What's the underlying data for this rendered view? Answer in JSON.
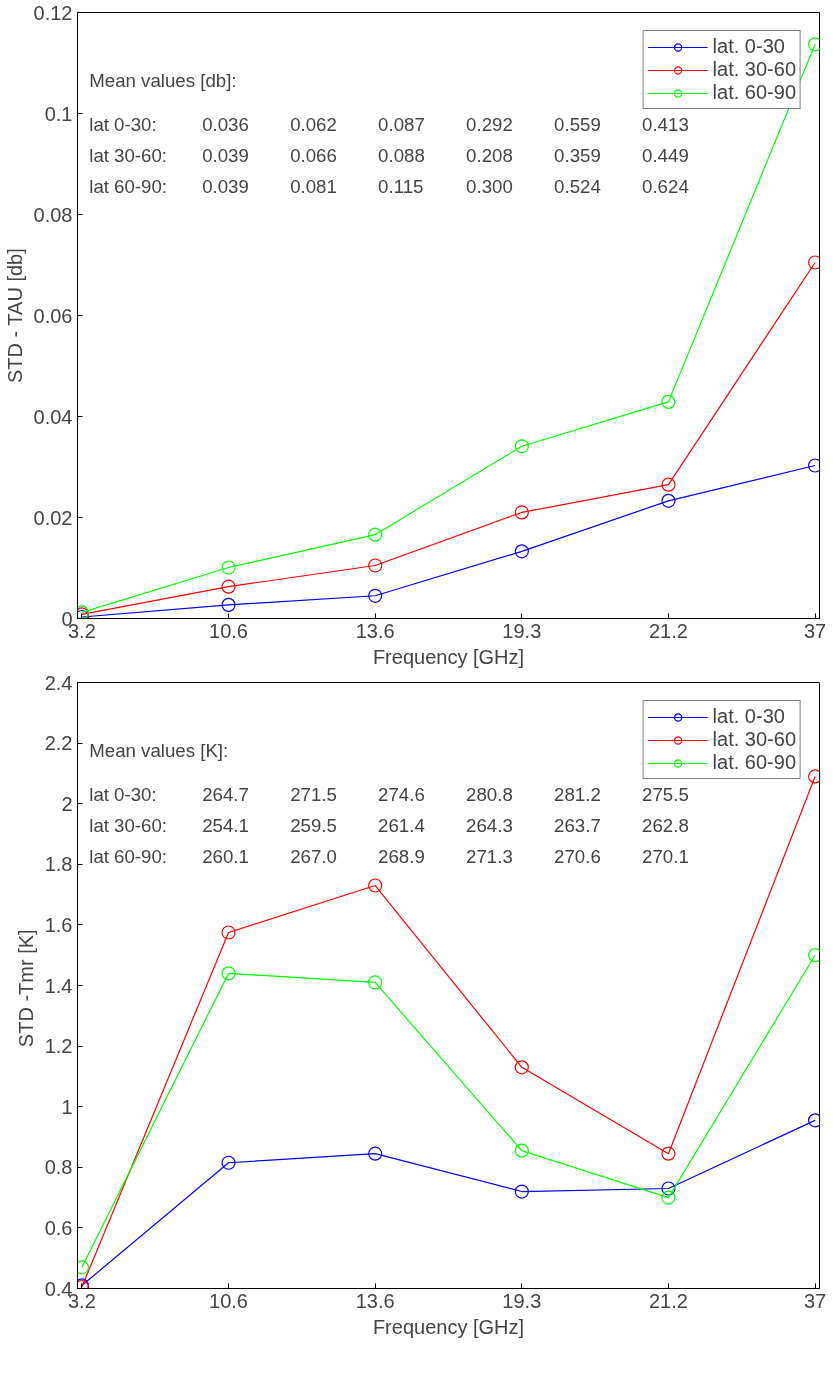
{
  "chart_data": [
    {
      "type": "line",
      "xlabel": "Frequency [GHz]",
      "ylabel": "STD - TAU [db]",
      "categories": [
        "3.2",
        "10.6",
        "13.6",
        "19.3",
        "21.2",
        "37"
      ],
      "ylim": [
        0,
        0.12
      ],
      "yticks": [
        0,
        0.02,
        0.04,
        0.06,
        0.08,
        0.1,
        0.12
      ],
      "grid": false,
      "legend": "top right",
      "marker": "circle",
      "line_style": "solid",
      "series": [
        {
          "name": "lat. 0-30",
          "color": "#0000ff",
          "values": [
            0.0003,
            0.0027,
            0.0045,
            0.0133,
            0.0233,
            0.0303
          ]
        },
        {
          "name": "lat. 30-60",
          "color": "#ff0000",
          "values": [
            0.0008,
            0.0063,
            0.0105,
            0.021,
            0.0265,
            0.0705
          ]
        },
        {
          "name": "lat. 60-90",
          "color": "#00ff00",
          "values": [
            0.0012,
            0.0101,
            0.0166,
            0.0341,
            0.0429,
            0.1137
          ]
        }
      ],
      "annotations": [
        "Mean values [db]:",
        "lat 0-30:    0.036     0.062     0.087     0.292     0.559     0.413",
        "lat 30-60:  0.039     0.066     0.088     0.208     0.359     0.449",
        "lat 60-90:  0.039     0.081     0.115     0.300     0.524     0.624"
      ]
    },
    {
      "type": "line",
      "xlabel": "Frequency [GHz]",
      "ylabel": "STD -Tmr  [K]",
      "categories": [
        "3.2",
        "10.6",
        "13.6",
        "19.3",
        "21.2",
        "37"
      ],
      "ylim": [
        0.4,
        2.4
      ],
      "yticks": [
        0.4,
        0.6,
        0.8,
        1,
        1.2,
        1.4,
        1.6,
        1.8,
        2,
        2.2,
        2.4
      ],
      "grid": false,
      "legend": "top right",
      "marker": "circle",
      "line_style": "solid",
      "series": [
        {
          "name": "lat. 0-30",
          "color": "#0000ff",
          "values": [
            0.41,
            0.815,
            0.845,
            0.72,
            0.73,
            0.955
          ]
        },
        {
          "name": "lat. 30-60",
          "color": "#ff0000",
          "values": [
            0.405,
            1.575,
            1.73,
            1.13,
            0.845,
            2.09
          ]
        },
        {
          "name": "lat. 60-90",
          "color": "#00ff00",
          "values": [
            0.47,
            1.44,
            1.41,
            0.855,
            0.7,
            1.5
          ]
        }
      ],
      "annotations": [
        "Mean values [K]:",
        "lat 0-30:     264.7   271.5   274.6    280.8   281.2   275.5",
        "lat 30-60:   254.1   259.5   261.4    264.3   263.7   262.8",
        "lat 60-90:   260.1   267.0   268.9    271.3   270.6   270.1"
      ]
    }
  ]
}
